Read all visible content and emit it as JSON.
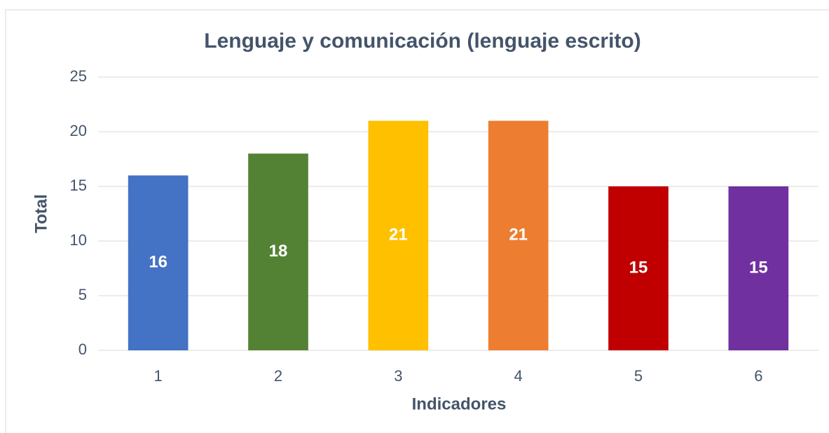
{
  "chart_data": {
    "type": "bar",
    "title": "Lenguaje y comunicación (lenguaje escrito)",
    "x_label": "Indicadores",
    "y_label": "Total",
    "categories": [
      "1",
      "2",
      "3",
      "4",
      "5",
      "6"
    ],
    "values": [
      16,
      18,
      21,
      21,
      15,
      15
    ],
    "colors": [
      "#4472c4",
      "#548235",
      "#ffc000",
      "#ed7d31",
      "#c00000",
      "#7030a0"
    ],
    "ylim": [
      0,
      25
    ],
    "yticks": [
      0,
      5,
      10,
      15,
      20,
      25
    ],
    "grid": true
  }
}
